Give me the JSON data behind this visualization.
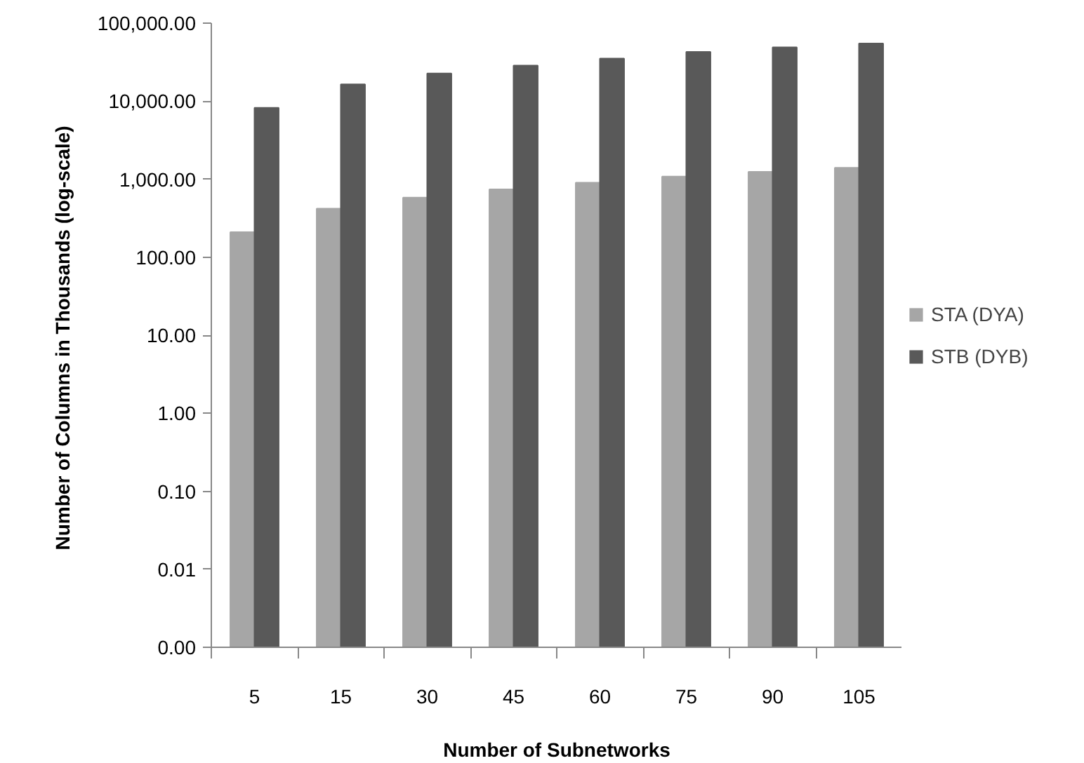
{
  "chart_data": {
    "type": "bar",
    "xlabel": "Number of Subnetworks",
    "ylabel": "Number of Columns in Thousands  (log-scale)",
    "categories": [
      "5",
      "15",
      "30",
      "45",
      "60",
      "75",
      "90",
      "105"
    ],
    "series": [
      {
        "name": "STA (DYA)",
        "color": "#a6a6a6",
        "values": [
          210,
          420,
          580,
          740,
          900,
          1080,
          1240,
          1400
        ]
      },
      {
        "name": "STB (DYB)",
        "color": "#595959",
        "values": [
          8200,
          16400,
          22600,
          28600,
          35200,
          42700,
          49000,
          54800
        ]
      }
    ],
    "log": "y",
    "ylim": [
      0.001,
      100000
    ],
    "yticks": [
      {
        "value": 0.001,
        "label": "0.00"
      },
      {
        "value": 0.01,
        "label": "0.01"
      },
      {
        "value": 0.1,
        "label": "0.10"
      },
      {
        "value": 1,
        "label": "1.00"
      },
      {
        "value": 10,
        "label": "10.00"
      },
      {
        "value": 100,
        "label": "100.00"
      },
      {
        "value": 1000,
        "label": "1,000.00"
      },
      {
        "value": 10000,
        "label": "10,000.00"
      },
      {
        "value": 100000,
        "label": "100,000.00"
      }
    ],
    "grid": false,
    "legend": "right"
  }
}
